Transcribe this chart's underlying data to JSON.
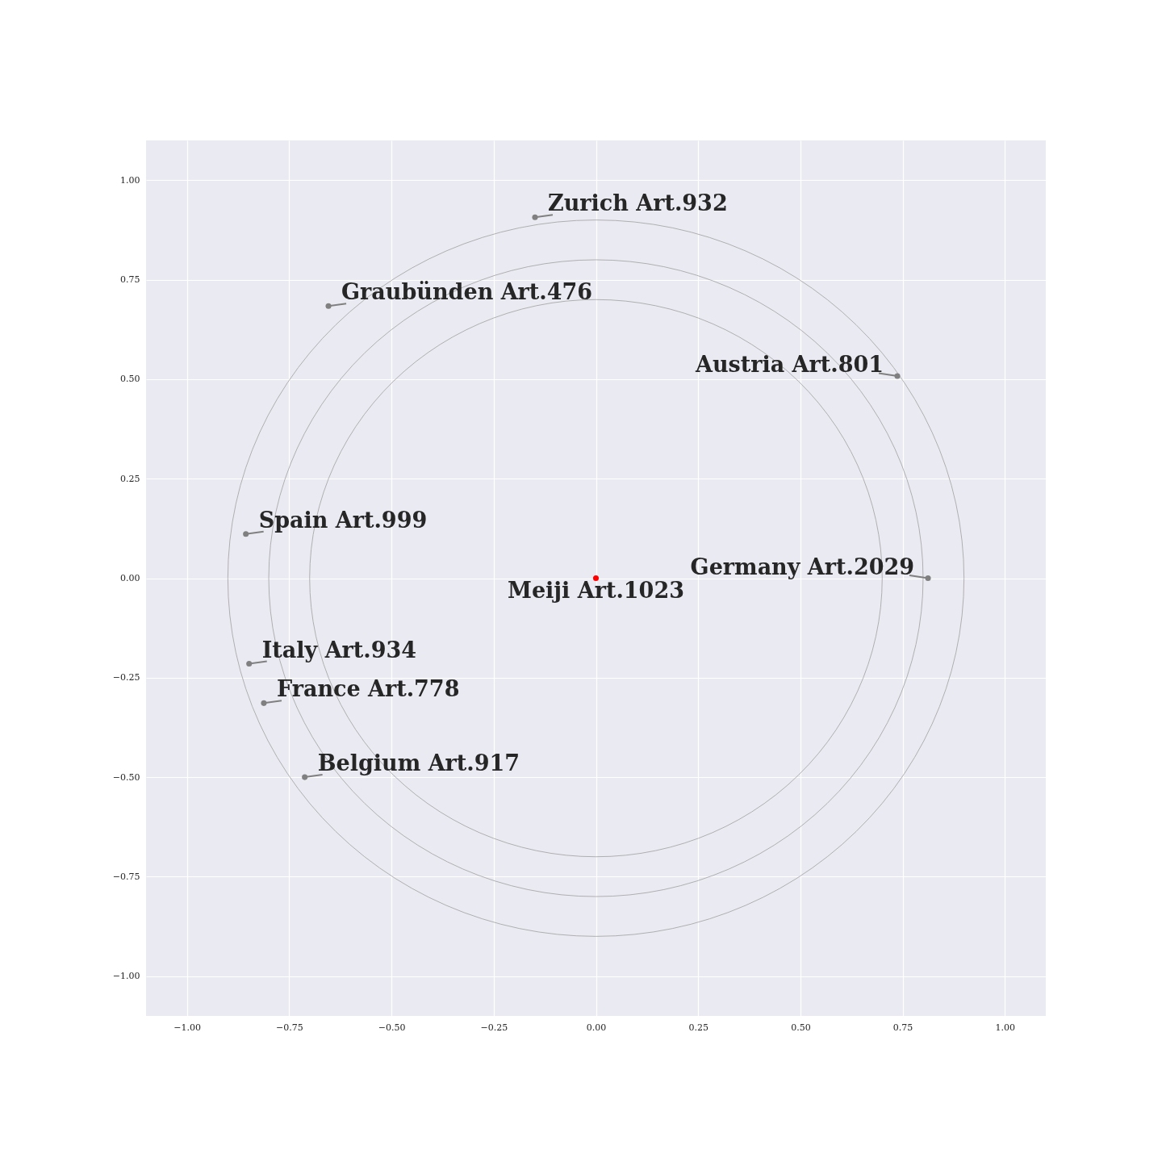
{
  "chart_data": {
    "type": "scatter",
    "xlim": [
      -1.1,
      1.1
    ],
    "ylim": [
      -1.1,
      1.1
    ],
    "xticks": [
      {
        "value": -1,
        "label": "−1.00"
      },
      {
        "value": -0.75,
        "label": "−0.75"
      },
      {
        "value": -0.5,
        "label": "−0.50"
      },
      {
        "value": -0.25,
        "label": "−0.25"
      },
      {
        "value": 0,
        "label": "0.00"
      },
      {
        "value": 0.25,
        "label": "0.25"
      },
      {
        "value": 0.5,
        "label": "0.50"
      },
      {
        "value": 0.75,
        "label": "0.75"
      },
      {
        "value": 1,
        "label": "1.00"
      }
    ],
    "yticks": [
      {
        "value": -1,
        "label": "−1.00"
      },
      {
        "value": -0.75,
        "label": "−0.75"
      },
      {
        "value": -0.5,
        "label": "−0.50"
      },
      {
        "value": -0.25,
        "label": "−0.25"
      },
      {
        "value": 0,
        "label": "0.00"
      },
      {
        "value": 0.25,
        "label": "0.25"
      },
      {
        "value": 0.5,
        "label": "0.50"
      },
      {
        "value": 0.75,
        "label": "0.75"
      },
      {
        "value": 1,
        "label": "1.00"
      }
    ],
    "grid": true,
    "legend": false,
    "series": [
      {
        "marker": "circle",
        "x": [
          -0.149,
          -0.654,
          0.737,
          -0.856,
          0.812,
          0,
          -0.848,
          -0.812,
          -0.712
        ],
        "values": [
          0.907,
          0.684,
          0.508,
          0.111,
          0,
          0,
          -0.215,
          -0.314,
          -0.5
        ],
        "colors": [
          "#808080",
          "#808080",
          "#808080",
          "#808080",
          "#808080",
          "#ff0000",
          "#808080",
          "#808080",
          "#808080"
        ]
      }
    ],
    "annotations": [
      {
        "text": "Zurich Art.932",
        "x": -0.149,
        "y": 0.907
      },
      {
        "text": "Graubünden Art.476",
        "x": -0.654,
        "y": 0.684
      },
      {
        "text": "Austria Art.801",
        "x": 0.737,
        "y": 0.508
      },
      {
        "text": "Spain Art.999",
        "x": -0.856,
        "y": 0.111
      },
      {
        "text": "Germany Art.2029",
        "x": 0.812,
        "y": 0
      },
      {
        "text": "Meiji Art.1023",
        "x": 0,
        "y": 0
      },
      {
        "text": "Italy Art.934",
        "x": -0.848,
        "y": -0.215
      },
      {
        "text": "France Art.778",
        "x": -0.812,
        "y": -0.314
      },
      {
        "text": "Belgium Art.917",
        "x": -0.712,
        "y": -0.5
      }
    ]
  }
}
